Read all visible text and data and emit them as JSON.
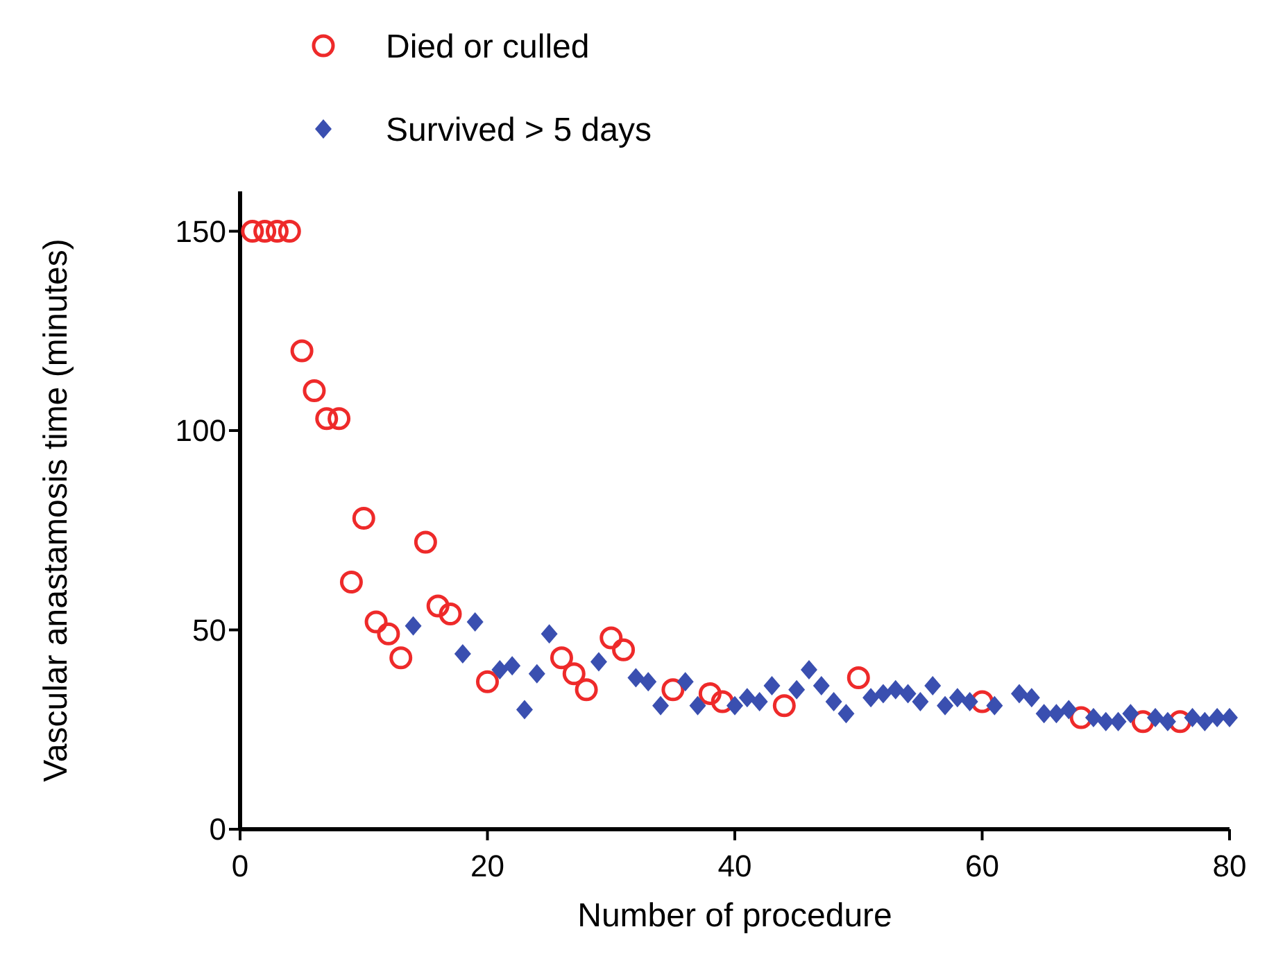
{
  "chart_data": {
    "type": "scatter",
    "xlabel": "Number of procedure",
    "ylabel": "Vascular anastamosis time (minutes)",
    "xlim": [
      0,
      80
    ],
    "ylim": [
      0,
      160
    ],
    "xticks": [
      0,
      20,
      40,
      60,
      80
    ],
    "yticks": [
      0,
      50,
      100,
      150
    ],
    "legend": "top",
    "grid": false,
    "series": [
      {
        "name": "Died or culled",
        "color": "#ee2a2a",
        "marker": "circle",
        "x": [
          1,
          2,
          3,
          4,
          5,
          6,
          7,
          8,
          9,
          10,
          11,
          12,
          13,
          15,
          16,
          17,
          20,
          26,
          27,
          28,
          30,
          31,
          35,
          38,
          39,
          44,
          50,
          60,
          68,
          73,
          76
        ],
        "values": [
          150,
          150,
          150,
          150,
          120,
          110,
          103,
          103,
          62,
          78,
          52,
          49,
          43,
          72,
          56,
          54,
          37,
          43,
          39,
          35,
          48,
          45,
          35,
          34,
          32,
          31,
          38,
          32,
          28,
          27,
          27
        ]
      },
      {
        "name": "Survived > 5 days",
        "color": "#3a4fb0",
        "marker": "diamond",
        "x": [
          14,
          18,
          19,
          21,
          22,
          23,
          24,
          25,
          29,
          32,
          33,
          34,
          36,
          37,
          40,
          41,
          42,
          43,
          45,
          46,
          47,
          48,
          49,
          51,
          52,
          53,
          54,
          55,
          56,
          57,
          58,
          59,
          61,
          63,
          64,
          65,
          66,
          67,
          69,
          70,
          71,
          72,
          74,
          75,
          77,
          78,
          79,
          80
        ],
        "values": [
          51,
          44,
          52,
          40,
          41,
          30,
          39,
          49,
          42,
          38,
          37,
          31,
          37,
          31,
          31,
          33,
          32,
          36,
          35,
          40,
          36,
          32,
          29,
          33,
          34,
          35,
          34,
          32,
          36,
          31,
          33,
          32,
          31,
          34,
          33,
          29,
          29,
          30,
          28,
          27,
          27,
          29,
          28,
          27,
          28,
          27,
          28,
          28
        ]
      }
    ]
  }
}
